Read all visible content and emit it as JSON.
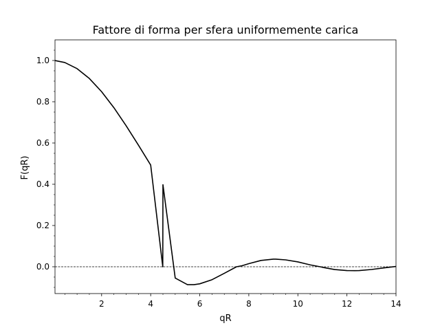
{
  "chart_data": {
    "type": "line",
    "title": "Fattore di forma per sfera uniformemente carica",
    "xlabel": "qR",
    "ylabel": "F(qR)",
    "xlim": [
      0.1,
      14
    ],
    "ylim": [
      -0.13,
      1.1
    ],
    "x_ticks": [
      2,
      4,
      6,
      8,
      10,
      12,
      14
    ],
    "x_tick_labels": [
      "2",
      "4",
      "6",
      "8",
      "10",
      "12",
      "14"
    ],
    "y_ticks": [
      0.0,
      0.2,
      0.4,
      0.6,
      0.8,
      1.0
    ],
    "y_tick_labels": [
      "0.0",
      "0.2",
      "0.4",
      "0.6",
      "0.8",
      "1.0"
    ],
    "grid": false,
    "reference_line": {
      "y": 0,
      "style": "dashed",
      "color": "#000000"
    },
    "series": [
      {
        "color": "#000000",
        "x": [
          0.1,
          0.5,
          1,
          1.5,
          2,
          2.5,
          3,
          3.5,
          4,
          4.5,
          4.493,
          5,
          5.5,
          5.763,
          6,
          6.5,
          7,
          7.5,
          7.725,
          8,
          8.5,
          9,
          9.095,
          9.5,
          10,
          10.5,
          10.904,
          11,
          11.5,
          12,
          12.323,
          12.5,
          13,
          13.5,
          14
        ],
        "y": [
          0.9997,
          0.9901,
          0.9606,
          0.9128,
          0.8488,
          0.7713,
          0.6837,
          0.5898,
          0.4932,
          0.3979,
          0.0,
          -0.0547,
          -0.0869,
          -0.0868,
          -0.0827,
          -0.0628,
          -0.0318,
          0.0,
          0.005,
          0.015,
          0.0306,
          0.0368,
          0.037,
          0.0333,
          0.0236,
          0.0091,
          0.0,
          -0.0026,
          -0.0136,
          -0.0186,
          -0.019,
          -0.0184,
          -0.0133,
          -0.0055,
          0.0014
        ]
      }
    ]
  }
}
